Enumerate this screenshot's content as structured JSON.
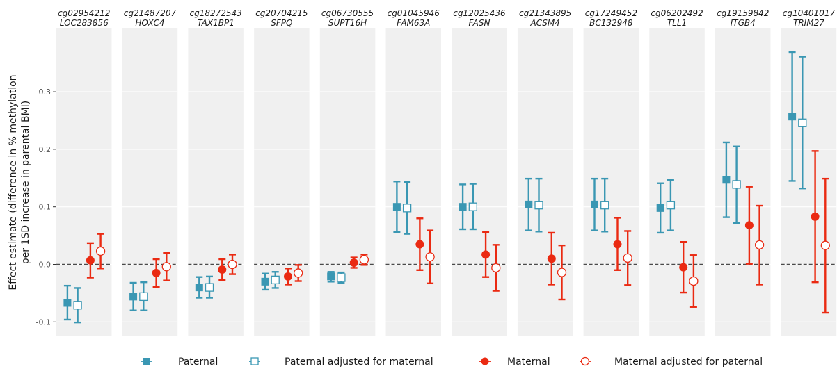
{
  "chart_data": {
    "type": "errorbar",
    "ylabel": "Effect estimate (difference in % methylation per 1SD increase in parental BMI)",
    "ylabel_lines": [
      "Effect estimate (difference in % methylation",
      "per 1SD increase in parental BMI)"
    ],
    "ylim": [
      -0.125,
      0.41
    ],
    "yticks": [
      -0.1,
      0.0,
      0.1,
      0.2,
      0.3
    ],
    "ytick_labels": [
      "-0.1",
      "0.0",
      "0.1",
      "0.2",
      "0.3"
    ],
    "reference_line": 0,
    "grid": true,
    "legend_position": "bottom",
    "legend": [
      {
        "key": "paternal",
        "label": "Paternal"
      },
      {
        "key": "paternal_adj",
        "label": "Paternal adjusted for maternal"
      },
      {
        "key": "maternal",
        "label": "Maternal"
      },
      {
        "key": "maternal_adj",
        "label": "Maternal adjusted for paternal"
      }
    ],
    "series_style": {
      "paternal": {
        "color": "#3a97b3",
        "shape": "square",
        "filled": true
      },
      "paternal_adj": {
        "color": "#3a97b3",
        "shape": "square",
        "filled": false
      },
      "maternal": {
        "color": "#ea2a12",
        "shape": "circle",
        "filled": true
      },
      "maternal_adj": {
        "color": "#ea2a12",
        "shape": "circle",
        "filled": false
      }
    },
    "facets": [
      {
        "cpg": "cg02954212",
        "gene": "LOC283856",
        "paternal": [
          -0.067,
          -0.096,
          -0.037
        ],
        "paternal_adj": [
          -0.071,
          -0.101,
          -0.041
        ],
        "maternal": [
          0.007,
          -0.023,
          0.037
        ],
        "maternal_adj": [
          0.023,
          -0.007,
          0.053
        ]
      },
      {
        "cpg": "cg21487207",
        "gene": "HOXC4",
        "paternal": [
          -0.056,
          -0.08,
          -0.032
        ],
        "paternal_adj": [
          -0.056,
          -0.08,
          -0.031
        ],
        "maternal": [
          -0.015,
          -0.039,
          0.009
        ],
        "maternal_adj": [
          -0.004,
          -0.028,
          0.02
        ]
      },
      {
        "cpg": "cg18272543",
        "gene": "TAX1BP1",
        "paternal": [
          -0.04,
          -0.058,
          -0.022
        ],
        "paternal_adj": [
          -0.04,
          -0.058,
          -0.021
        ],
        "maternal": [
          -0.009,
          -0.027,
          0.009
        ],
        "maternal_adj": [
          0.0,
          -0.017,
          0.017
        ]
      },
      {
        "cpg": "cg20704215",
        "gene": "SFPQ",
        "paternal": [
          -0.03,
          -0.044,
          -0.016
        ],
        "paternal_adj": [
          -0.027,
          -0.041,
          -0.013
        ],
        "maternal": [
          -0.021,
          -0.035,
          -0.007
        ],
        "maternal_adj": [
          -0.015,
          -0.029,
          -0.001
        ]
      },
      {
        "cpg": "cg06730555",
        "gene": "SUPT16H",
        "paternal": [
          -0.021,
          -0.03,
          -0.013
        ],
        "paternal_adj": [
          -0.023,
          -0.032,
          -0.014
        ],
        "maternal": [
          0.003,
          -0.006,
          0.012
        ],
        "maternal_adj": [
          0.008,
          -0.001,
          0.017
        ]
      },
      {
        "cpg": "cg01045946",
        "gene": "FAM63A",
        "paternal": [
          0.1,
          0.056,
          0.144
        ],
        "paternal_adj": [
          0.098,
          0.053,
          0.143
        ],
        "maternal": [
          0.035,
          -0.01,
          0.08
        ],
        "maternal_adj": [
          0.013,
          -0.033,
          0.059
        ]
      },
      {
        "cpg": "cg12025436",
        "gene": "FASN",
        "paternal": [
          0.1,
          0.061,
          0.139
        ],
        "paternal_adj": [
          0.1,
          0.061,
          0.14
        ],
        "maternal": [
          0.017,
          -0.022,
          0.056
        ],
        "maternal_adj": [
          -0.006,
          -0.046,
          0.034
        ]
      },
      {
        "cpg": "cg21343895",
        "gene": "ACSM4",
        "paternal": [
          0.104,
          0.059,
          0.149
        ],
        "paternal_adj": [
          0.103,
          0.057,
          0.149
        ],
        "maternal": [
          0.01,
          -0.035,
          0.055
        ],
        "maternal_adj": [
          -0.014,
          -0.061,
          0.033
        ]
      },
      {
        "cpg": "cg17249452",
        "gene": "BC132948",
        "paternal": [
          0.104,
          0.059,
          0.149
        ],
        "paternal_adj": [
          0.103,
          0.057,
          0.149
        ],
        "maternal": [
          0.035,
          -0.01,
          0.081
        ],
        "maternal_adj": [
          0.011,
          -0.036,
          0.058
        ]
      },
      {
        "cpg": "cg06202492",
        "gene": "TLL1",
        "paternal": [
          0.098,
          0.055,
          0.141
        ],
        "paternal_adj": [
          0.103,
          0.059,
          0.147
        ],
        "maternal": [
          -0.005,
          -0.049,
          0.039
        ],
        "maternal_adj": [
          -0.029,
          -0.074,
          0.016
        ]
      },
      {
        "cpg": "cg19159842",
        "gene": "ITGB4",
        "paternal": [
          0.147,
          0.082,
          0.212
        ],
        "paternal_adj": [
          0.139,
          0.072,
          0.205
        ],
        "maternal": [
          0.068,
          0.001,
          0.135
        ],
        "maternal_adj": [
          0.034,
          -0.035,
          0.102
        ]
      },
      {
        "cpg": "cg10401017",
        "gene": "TRIM27",
        "paternal": [
          0.257,
          0.145,
          0.369
        ],
        "paternal_adj": [
          0.246,
          0.132,
          0.361
        ],
        "maternal": [
          0.083,
          -0.031,
          0.197
        ],
        "maternal_adj": [
          0.033,
          -0.084,
          0.149
        ]
      }
    ]
  }
}
